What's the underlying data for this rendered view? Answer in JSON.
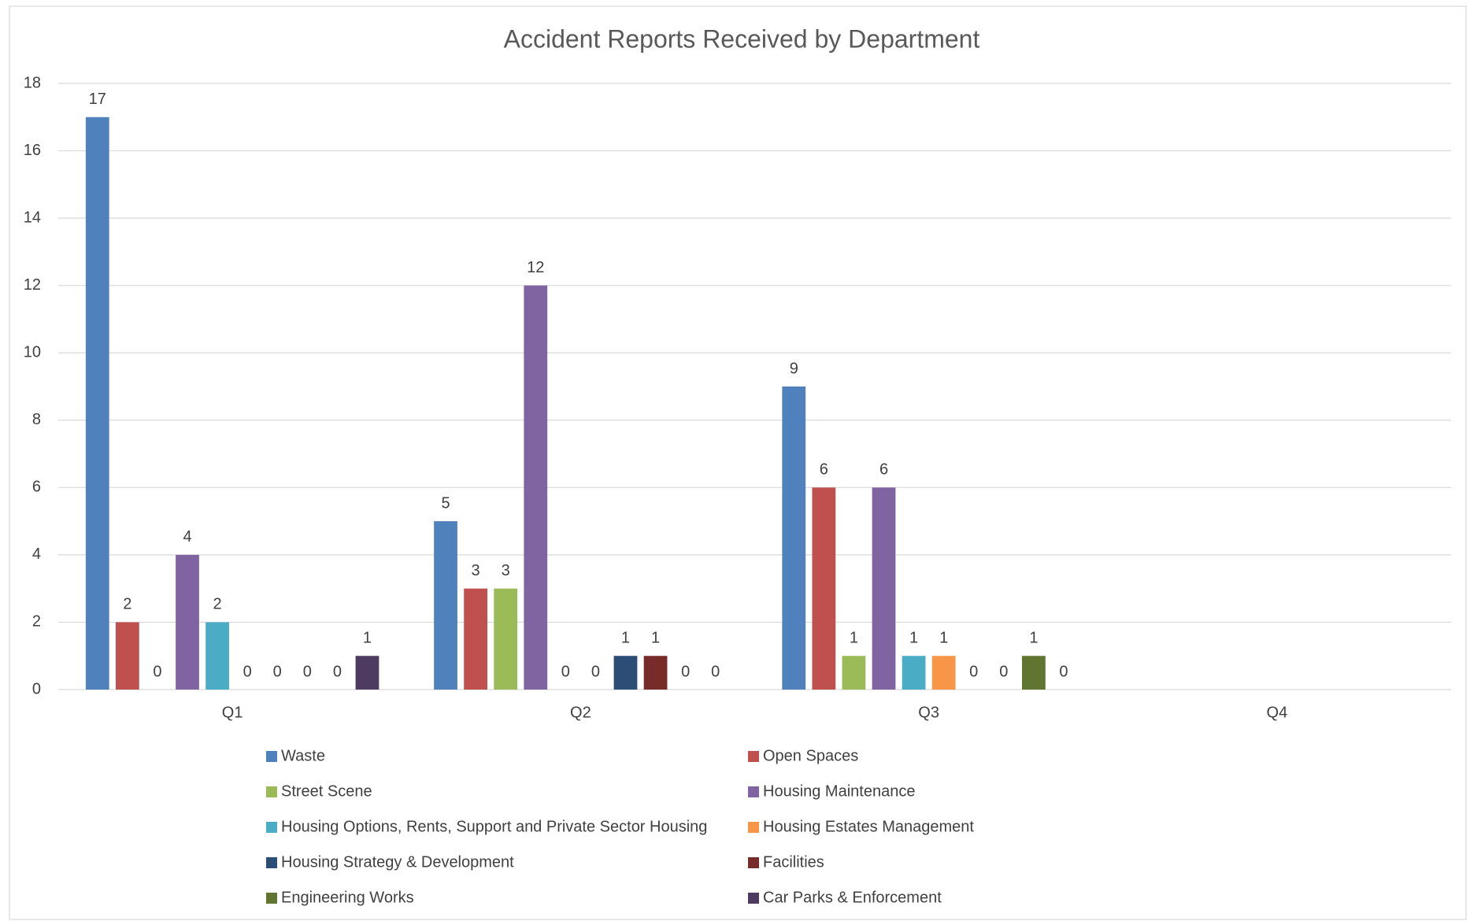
{
  "chart_data": {
    "type": "bar",
    "title": "Accident Reports Received by Department",
    "categories": [
      "Q1",
      "Q2",
      "Q3",
      "Q4"
    ],
    "series": [
      {
        "name": "Waste",
        "color": "#4f81bd",
        "values": [
          17,
          5,
          9,
          null
        ]
      },
      {
        "name": "Open Spaces",
        "color": "#c0504d",
        "values": [
          2,
          3,
          6,
          null
        ]
      },
      {
        "name": "Street Scene",
        "color": "#9bbb59",
        "values": [
          0,
          3,
          1,
          null
        ]
      },
      {
        "name": "Housing Maintenance",
        "color": "#8064a2",
        "values": [
          4,
          12,
          6,
          null
        ]
      },
      {
        "name": "Housing Options, Rents, Support and Private Sector Housing",
        "color": "#4bacc6",
        "values": [
          2,
          0,
          1,
          null
        ]
      },
      {
        "name": "Housing Estates Management",
        "color": "#f79646",
        "values": [
          0,
          0,
          1,
          null
        ]
      },
      {
        "name": "Housing Strategy & Development",
        "color": "#2c4d75",
        "values": [
          0,
          1,
          0,
          null
        ]
      },
      {
        "name": "Facilities",
        "color": "#772c2a",
        "values": [
          0,
          1,
          0,
          null
        ]
      },
      {
        "name": "Engineering Works",
        "color": "#5f7530",
        "values": [
          0,
          0,
          1,
          null
        ]
      },
      {
        "name": "Car Parks & Enforcement",
        "color": "#4d3b62",
        "values": [
          1,
          0,
          0,
          null
        ]
      }
    ],
    "ylim": [
      0,
      18
    ],
    "yticks": [
      0,
      2,
      4,
      6,
      8,
      10,
      12,
      14,
      16,
      18
    ],
    "grid": true,
    "legend": "bottom"
  }
}
